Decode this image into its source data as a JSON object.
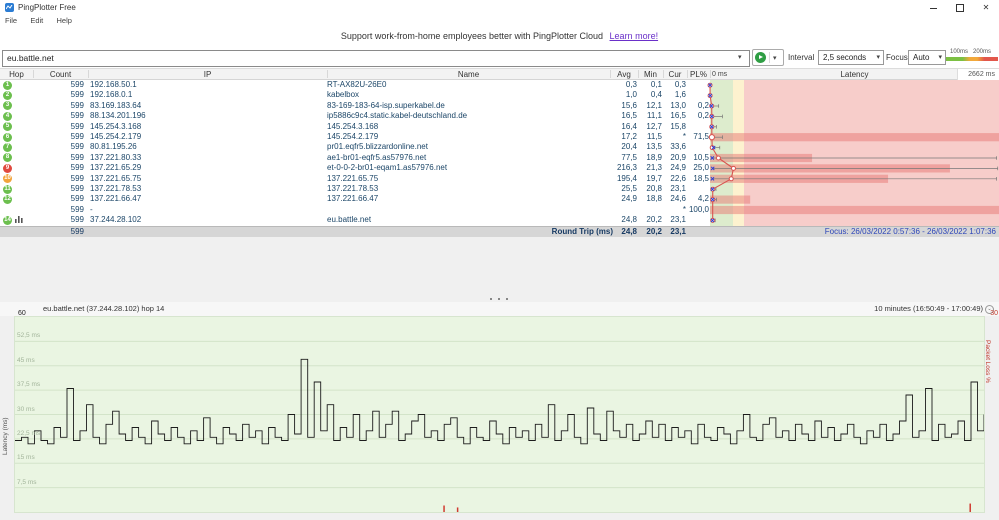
{
  "window": {
    "title": "PingPlotter Free",
    "menu": [
      "File",
      "Edit",
      "Help"
    ],
    "controls": [
      "minimize",
      "maximize",
      "close"
    ]
  },
  "banner": {
    "text": "Support work-from-home employees better with PingPlotter Cloud",
    "link_text": "Learn more!"
  },
  "toolbar": {
    "target_value": "eu.battle.net",
    "interval_label": "Interval",
    "interval_value": "2,5 seconds",
    "focus_label": "Focus",
    "focus_value": "Auto",
    "legend_labels": [
      "100ms",
      "200ms"
    ]
  },
  "trace_table": {
    "headers": {
      "hop": "Hop",
      "count": "Count",
      "ip": "IP",
      "name": "Name",
      "avg": "Avg",
      "min": "Min",
      "cur": "Cur",
      "pl": "PL%",
      "latency": "Latency"
    },
    "scale": {
      "min_label": "0 ms",
      "max_label": "2662 ms",
      "max_ms": 2662
    },
    "rows": [
      {
        "hop": "1",
        "badge": "green",
        "count": "599",
        "ip": "192.168.50.1",
        "name": "RT-AX82U-26E0",
        "avg": "0,3",
        "min": "0,1",
        "cur": "0,3",
        "pl": "",
        "graph": {
          "avg_ms": 0.3,
          "cur_ms": 0.3,
          "min_ms": 0.1,
          "max_ms": null,
          "band_ms": 0
        }
      },
      {
        "hop": "2",
        "badge": "green",
        "count": "599",
        "ip": "192.168.0.1",
        "name": "kabelbox",
        "avg": "1,0",
        "min": "0,4",
        "cur": "1,6",
        "pl": "",
        "graph": {
          "avg_ms": 1.0,
          "cur_ms": 1.6,
          "min_ms": 0.4,
          "max_ms": null,
          "band_ms": 0
        }
      },
      {
        "hop": "3",
        "badge": "green",
        "count": "599",
        "ip": "83.169.183.64",
        "name": "83-169-183-64-isp.superkabel.de",
        "avg": "15,6",
        "min": "12,1",
        "cur": "13,0",
        "pl": "0,2",
        "graph": {
          "avg_ms": 15.6,
          "cur_ms": 13.0,
          "min_ms": 12.1,
          "max_ms": 80,
          "band_ms": 0
        }
      },
      {
        "hop": "4",
        "badge": "green",
        "count": "599",
        "ip": "88.134.201.196",
        "name": "ip5886c9c4.static.kabel-deutschland.de",
        "avg": "16,5",
        "min": "11,1",
        "cur": "16,5",
        "pl": "0,2",
        "graph": {
          "avg_ms": 16.5,
          "cur_ms": 16.5,
          "min_ms": 11.1,
          "max_ms": 115,
          "band_ms": 0
        }
      },
      {
        "hop": "5",
        "badge": "green",
        "count": "599",
        "ip": "145.254.3.168",
        "name": "145.254.3.168",
        "avg": "16,4",
        "min": "12,7",
        "cur": "15,8",
        "pl": "",
        "graph": {
          "avg_ms": 16.4,
          "cur_ms": 15.8,
          "min_ms": 12.7,
          "max_ms": 60,
          "band_ms": 0
        }
      },
      {
        "hop": "6",
        "badge": "green",
        "count": "599",
        "ip": "145.254.2.179",
        "name": "145.254.2.179",
        "avg": "17,2",
        "min": "11,5",
        "cur": "*",
        "pl": "71,5",
        "graph": {
          "avg_ms": 17.2,
          "cur_ms": null,
          "min_ms": 11.5,
          "max_ms": 115,
          "band_ms": 2662
        }
      },
      {
        "hop": "7",
        "badge": "green",
        "count": "599",
        "ip": "80.81.195.26",
        "name": "pr01.eqfr5.blizzardonline.net",
        "avg": "20,4",
        "min": "13,5",
        "cur": "33,6",
        "pl": "",
        "graph": {
          "avg_ms": 20.4,
          "cur_ms": 33.6,
          "min_ms": 13.5,
          "max_ms": 90,
          "band_ms": 0
        }
      },
      {
        "hop": "8",
        "badge": "green",
        "count": "599",
        "ip": "137.221.80.33",
        "name": "ae1-br01-eqfr5.as57976.net",
        "avg": "77,5",
        "min": "18,9",
        "cur": "20,9",
        "pl": "10,5",
        "graph": {
          "avg_ms": 77.5,
          "cur_ms": 20.9,
          "min_ms": 18.9,
          "max_ms": 2640,
          "band_ms": 940
        }
      },
      {
        "hop": "9",
        "badge": "red",
        "count": "599",
        "ip": "137.221.65.29",
        "name": "et-0-0-2-br01-eqam1.as57976.net",
        "avg": "216,3",
        "min": "21,3",
        "cur": "24,9",
        "pl": "25,0",
        "graph": {
          "avg_ms": 216.3,
          "cur_ms": 24.9,
          "min_ms": 21.3,
          "max_ms": 2650,
          "band_ms": 2210
        }
      },
      {
        "hop": "10",
        "badge": "orange",
        "count": "599",
        "ip": "137.221.65.75",
        "name": "137.221.65.75",
        "avg": "195,4",
        "min": "19,7",
        "cur": "22,6",
        "pl": "18,5",
        "graph": {
          "avg_ms": 195.4,
          "cur_ms": 22.6,
          "min_ms": 19.7,
          "max_ms": 2640,
          "band_ms": 1640
        }
      },
      {
        "hop": "11",
        "badge": "green",
        "count": "599",
        "ip": "137.221.78.53",
        "name": "137.221.78.53",
        "avg": "25,5",
        "min": "20,8",
        "cur": "23,1",
        "pl": "",
        "graph": {
          "avg_ms": 25.5,
          "cur_ms": 23.1,
          "min_ms": 20.8,
          "max_ms": 55,
          "band_ms": 0
        }
      },
      {
        "hop": "12",
        "badge": "green",
        "count": "599",
        "ip": "137.221.66.47",
        "name": "137.221.66.47",
        "avg": "24,9",
        "min": "18,8",
        "cur": "24,6",
        "pl": "4,2",
        "graph": {
          "avg_ms": 24.9,
          "cur_ms": 24.6,
          "min_ms": 18.8,
          "max_ms": 60,
          "band_ms": 370
        }
      },
      {
        "hop": "",
        "badge": "none",
        "count": "599",
        "ip": "-",
        "name": "",
        "avg": "",
        "min": "",
        "cur": "*",
        "pl": "100,0",
        "graph": {
          "avg_ms": null,
          "cur_ms": null,
          "min_ms": null,
          "max_ms": null,
          "band_ms": 2662
        }
      },
      {
        "hop": "14",
        "badge": "green",
        "count": "599",
        "ip": "37.244.28.102",
        "name": "eu.battle.net",
        "avg": "24,8",
        "min": "20,2",
        "cur": "23,1",
        "pl": "",
        "has_chart_icon": true,
        "graph": {
          "avg_ms": 24.8,
          "cur_ms": 23.1,
          "min_ms": 20.2,
          "max_ms": 48,
          "band_ms": 0
        }
      }
    ],
    "round_trip": {
      "count": "599",
      "label": "Round Trip (ms)",
      "avg": "24,8",
      "min": "20,2",
      "cur": "23,1"
    },
    "focus_text": "Focus: 26/03/2022 0:57:36 - 26/03/2022 1:07:36"
  },
  "timeline": {
    "title": "eu.battle.net (37.244.28.102) hop 14",
    "range_label": "10 minutes (16:50:49 - 17:00:49)",
    "left_axis_label": "Latency (ms)",
    "right_axis_label": "Packet Loss %",
    "left_max_label": "60",
    "right_max_label": "30",
    "grid_labels": [
      {
        "text": "52,5 ms",
        "ms": 52.5
      },
      {
        "text": "45 ms",
        "ms": 45
      },
      {
        "text": "37,5 ms",
        "ms": 37.5
      },
      {
        "text": "30 ms",
        "ms": 30
      },
      {
        "text": "22,5 ms",
        "ms": 22.5
      },
      {
        "text": "15 ms",
        "ms": 15
      },
      {
        "text": "7,5 ms",
        "ms": 7.5
      }
    ]
  },
  "chart_data": {
    "type": "line",
    "title": "eu.battle.net (37.244.28.102) hop 14",
    "xlabel": "time over 10 minutes (16:50:49 - 17:00:49)",
    "ylabel": "Latency (ms)",
    "y2label": "Packet Loss %",
    "ylim": [
      0,
      60
    ],
    "y2lim": [
      0,
      30
    ],
    "grid": true,
    "latency_ms": [
      22,
      23,
      21,
      25,
      22,
      21,
      26,
      23,
      38,
      22,
      25,
      33,
      23,
      21,
      27,
      31,
      24,
      22,
      26,
      23,
      21,
      28,
      24,
      22,
      26,
      23,
      21,
      25,
      22,
      29,
      23,
      21,
      26,
      24,
      22,
      27,
      23,
      25,
      21,
      26,
      23,
      22,
      30,
      24,
      47,
      23,
      40,
      25,
      33,
      22,
      26,
      23,
      30,
      22,
      25,
      31,
      23,
      27,
      31,
      22,
      24,
      28,
      30,
      23,
      25,
      22,
      27,
      29,
      23,
      21,
      26,
      23,
      22,
      28,
      24,
      21,
      26,
      23,
      25,
      22,
      27,
      23,
      33,
      22,
      25,
      30,
      23,
      21,
      32,
      24,
      22,
      31,
      25,
      23,
      27,
      22,
      24,
      28,
      23,
      27,
      22,
      26,
      23,
      25,
      21,
      27,
      23,
      22,
      26,
      24,
      21,
      25,
      30,
      23,
      22,
      27,
      29,
      23,
      25,
      22,
      27,
      24,
      22,
      28,
      23,
      26,
      22,
      24,
      27,
      23,
      21,
      25,
      23,
      27,
      22,
      24,
      28,
      36,
      23,
      25,
      38,
      22,
      27,
      23,
      24,
      28,
      22,
      40,
      25,
      30
    ],
    "loss_events_pct": [
      {
        "x_frac": 0.442,
        "pct": 1.0
      },
      {
        "x_frac": 0.456,
        "pct": 0.7
      },
      {
        "x_frac": 0.985,
        "pct": 1.3
      }
    ]
  },
  "colors": {
    "badge_green": "#6cbf4e",
    "badge_red": "#e04a3f",
    "badge_orange": "#f2a43c",
    "zone_green": "#ddeccd",
    "zone_yellow": "#fdf2cf",
    "zone_red": "#f7cdca",
    "band_red": "rgba(232,120,115,0.5)",
    "avg_line_red": "#d9534f",
    "cur_marker_blue": "#2b3fd6",
    "trace_black": "#1c1c1c",
    "link_purple": "#6a30c9",
    "row_text_navy": "#1c4668",
    "focus_blue": "#2d46b9",
    "plot_bg_green": "#eaf5e2",
    "loss_red": "#d03a30"
  }
}
